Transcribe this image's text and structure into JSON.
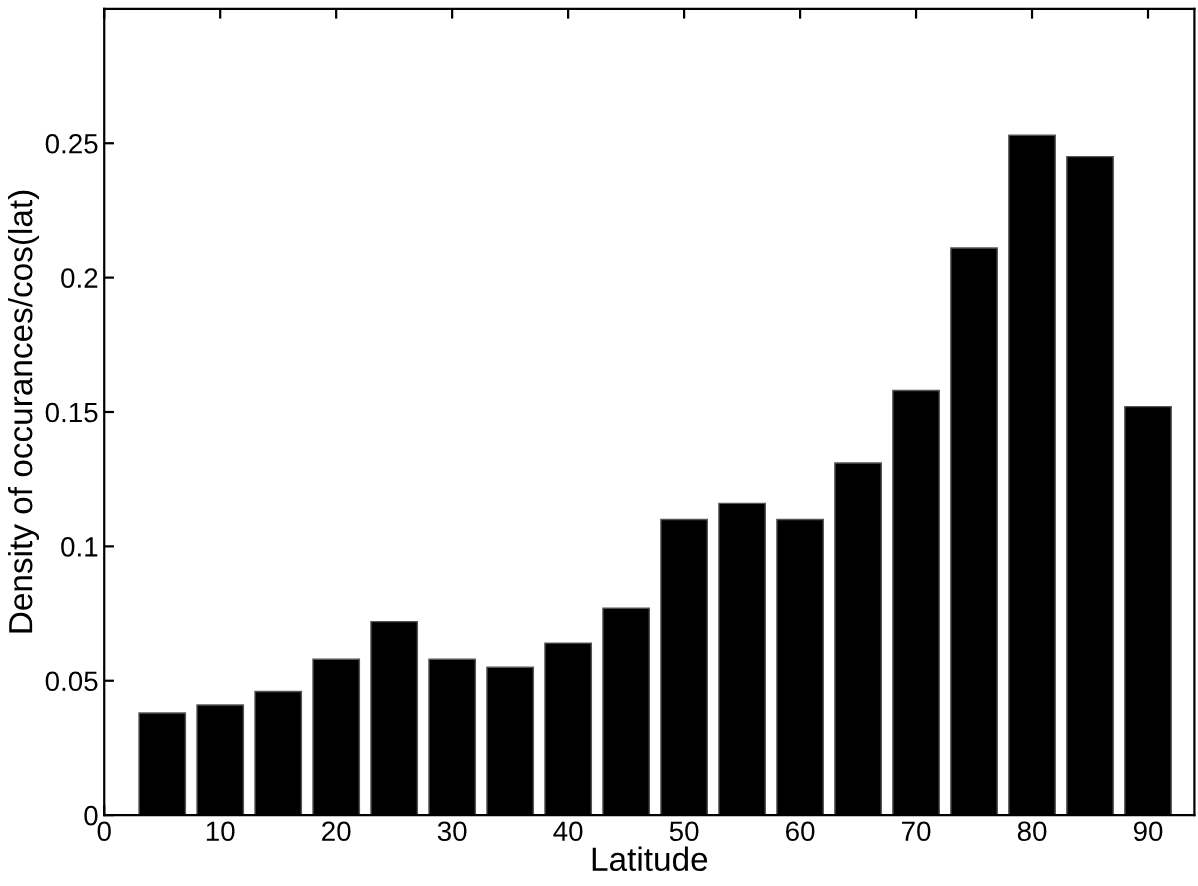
{
  "chart_data": {
    "type": "bar",
    "xlabel": "Latitude",
    "ylabel": "Density of occurances/cos(lat)",
    "x": [
      5,
      10,
      15,
      20,
      25,
      30,
      35,
      40,
      45,
      50,
      55,
      60,
      65,
      70,
      75,
      80,
      85,
      90
    ],
    "values": [
      0.038,
      0.041,
      0.046,
      0.058,
      0.072,
      0.058,
      0.055,
      0.064,
      0.077,
      0.11,
      0.116,
      0.11,
      0.131,
      0.158,
      0.211,
      0.253,
      0.245,
      0.152
    ],
    "color": "#000000",
    "xlim": [
      0,
      94
    ],
    "ylim": [
      0,
      0.3
    ],
    "xticks": [
      0,
      10,
      20,
      30,
      40,
      50,
      60,
      70,
      80,
      90
    ],
    "yticks": [
      0,
      0.05,
      0.1,
      0.15,
      0.2,
      0.25
    ],
    "grid": false,
    "legend": false
  }
}
